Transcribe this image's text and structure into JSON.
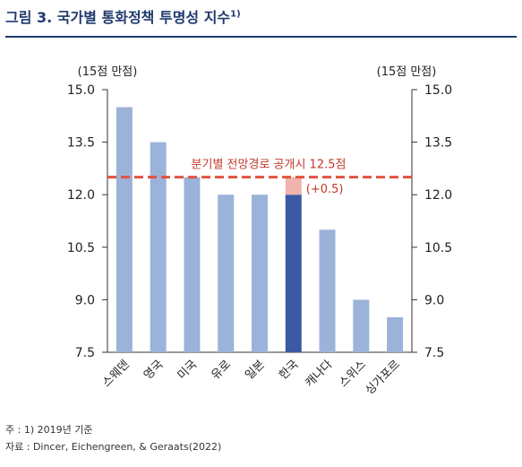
{
  "header": {
    "title": "그림 3. 국가별 통화정책 투명성 지수",
    "title_sup": "1)"
  },
  "chart_data": {
    "type": "bar",
    "ylabel_left": "(15점 만점)",
    "ylabel_right": "(15점 만점)",
    "ylim": [
      7.5,
      15.0
    ],
    "yticks": [
      "15.0",
      "13.5",
      "12.0",
      "10.5",
      "9.0",
      "7.5"
    ],
    "categories": [
      "스웨덴",
      "영국",
      "미국",
      "유로",
      "일본",
      "한국",
      "캐나다",
      "스위스",
      "싱가포르"
    ],
    "values": [
      14.5,
      13.5,
      12.5,
      12.0,
      12.0,
      12.0,
      11.0,
      9.0,
      8.5
    ],
    "highlight_index": 5,
    "increment": {
      "index": 5,
      "value": 0.5,
      "label": "(+0.5)"
    },
    "reference_line": {
      "value": 12.5,
      "label": "분기별 전망경로 공개시 12.5점"
    },
    "colors": {
      "bar": "#9bb3d8",
      "highlight": "#3a5aa6",
      "increment": "#f1b3ae",
      "reference": "#e0533f"
    }
  },
  "notes": {
    "note": "주 : 1) 2019년 기준",
    "source": "자료 : Dincer, Eichengreen, & Geraats(2022)"
  }
}
